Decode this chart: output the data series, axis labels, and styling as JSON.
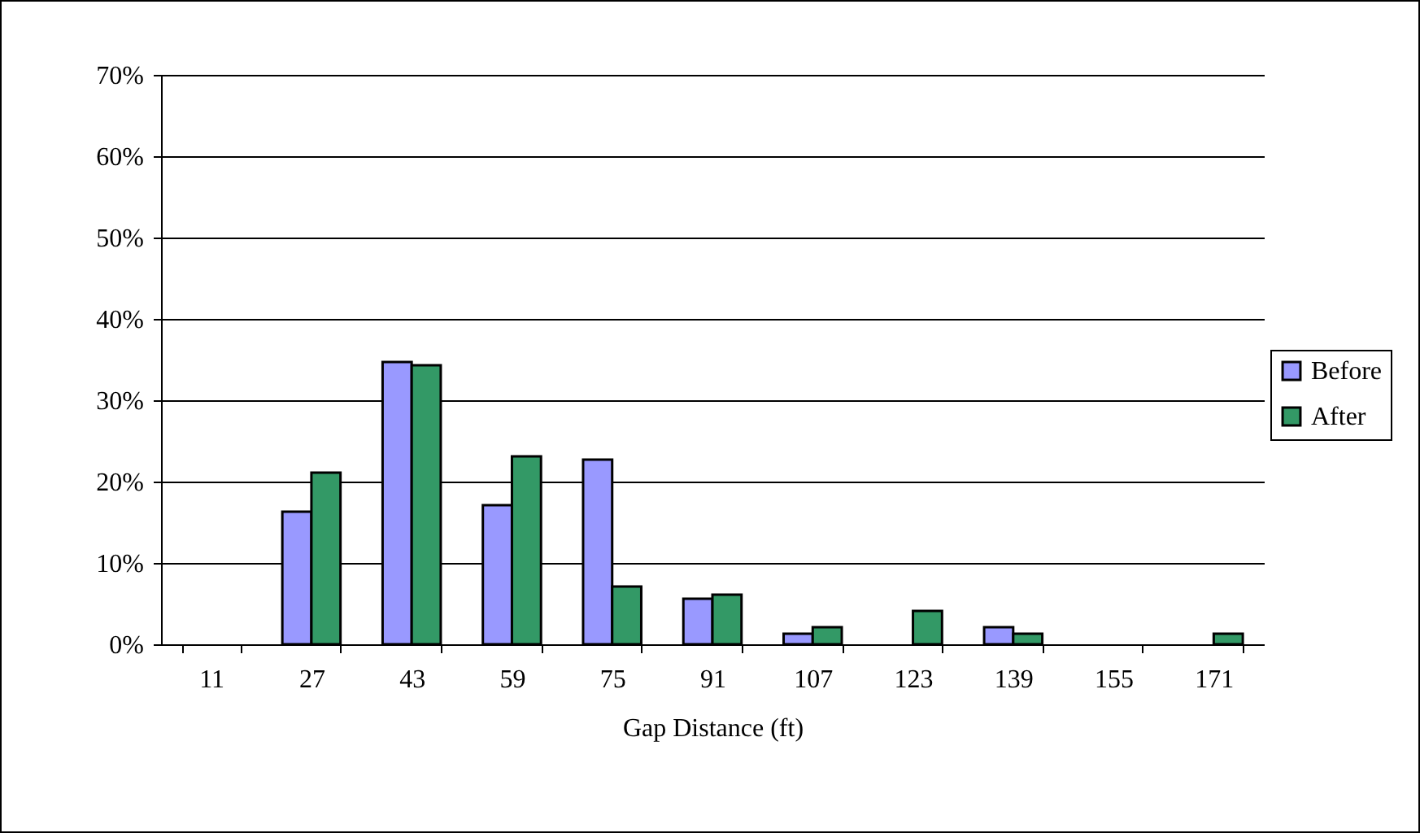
{
  "chart_data": {
    "type": "bar",
    "xlabel": "Gap Distance (ft)",
    "categories": [
      "11",
      "27",
      "43",
      "59",
      "75",
      "91",
      "107",
      "123",
      "139",
      "155",
      "171"
    ],
    "series": [
      {
        "name": "Before",
        "color": "#9999ff",
        "values": [
          0,
          16.3,
          34.7,
          17.1,
          22.7,
          5.6,
          1.3,
          0,
          2.1,
          0,
          0
        ]
      },
      {
        "name": "After",
        "color": "#339966",
        "values": [
          0,
          21.1,
          34.3,
          23.1,
          7.1,
          6.1,
          2.1,
          4.1,
          1.3,
          0,
          1.3
        ]
      }
    ],
    "ylim": [
      0,
      70
    ],
    "yticks": [
      {
        "value": 0,
        "label": "0%"
      },
      {
        "value": 10,
        "label": "10%"
      },
      {
        "value": 20,
        "label": "20%"
      },
      {
        "value": 30,
        "label": "30%"
      },
      {
        "value": 40,
        "label": "40%"
      },
      {
        "value": 50,
        "label": "50%"
      },
      {
        "value": 60,
        "label": "60%"
      },
      {
        "value": 70,
        "label": "70%"
      }
    ],
    "grid": "y",
    "legend": "right"
  }
}
